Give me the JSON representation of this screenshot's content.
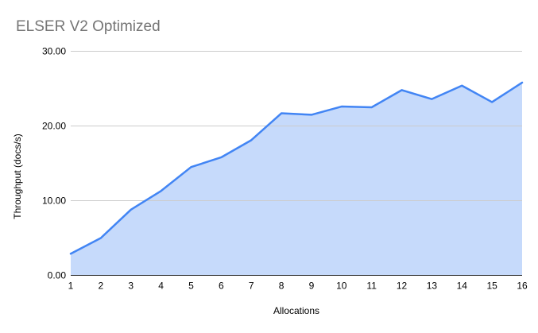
{
  "chart_data": {
    "type": "area",
    "title": "ELSER V2 Optimized",
    "xlabel": "Allocations",
    "ylabel": "Throughput (docs/s)",
    "x": [
      1,
      2,
      3,
      4,
      5,
      6,
      7,
      8,
      9,
      10,
      11,
      12,
      13,
      14,
      15,
      16
    ],
    "xtick_labels": [
      "1",
      "2",
      "3",
      "4",
      "5",
      "6",
      "7",
      "8",
      "9",
      "10",
      "11",
      "12",
      "13",
      "14",
      "15",
      "16"
    ],
    "values": [
      2.9,
      5.0,
      8.8,
      11.3,
      14.5,
      15.8,
      18.1,
      21.7,
      21.5,
      22.6,
      22.5,
      24.8,
      23.6,
      25.4,
      23.2,
      25.8
    ],
    "series_name": "Throughput (docs/s)",
    "ylim": [
      0,
      30
    ],
    "yticks": [
      0,
      10,
      20,
      30
    ],
    "ytick_labels": [
      "0.00",
      "10.00",
      "20.00",
      "30.00"
    ],
    "grid": true,
    "legend": "none",
    "colors": {
      "line": "#4285f4",
      "fill": "#c6dafb",
      "gridline": "#cccccc",
      "axis_line": "#333333",
      "title_text": "#757575",
      "tick_text": "#000000"
    }
  }
}
